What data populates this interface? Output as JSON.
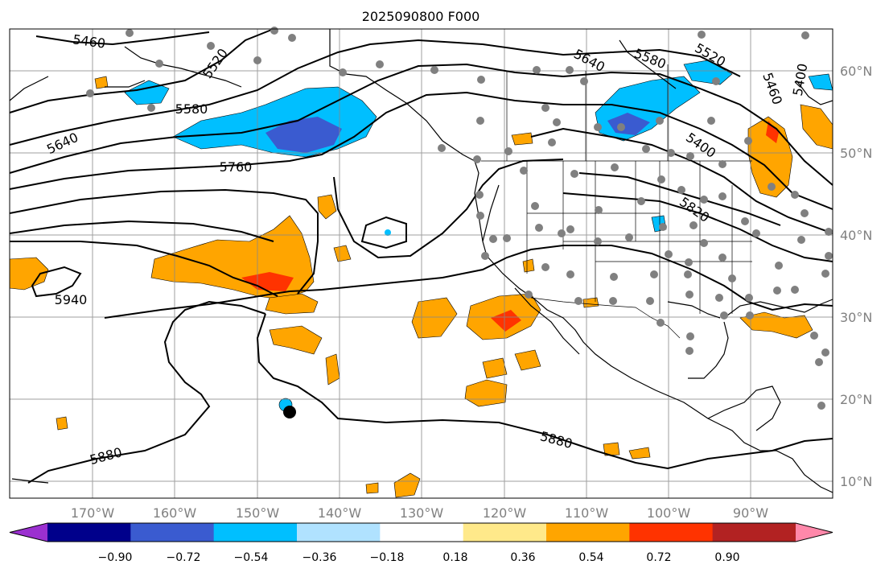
{
  "title": "2025090800 F000",
  "map": {
    "lon_labels": [
      "170°W",
      "160°W",
      "150°W",
      "140°W",
      "130°W",
      "120°W",
      "110°W",
      "100°W",
      "90°W"
    ],
    "lat_labels": [
      "10°N",
      "20°N",
      "30°N",
      "40°N",
      "50°N",
      "60°N"
    ],
    "contour_labels": [
      "5460",
      "5520",
      "5580",
      "5640",
      "5760",
      "5580",
      "5640",
      "5520",
      "5460",
      "5400",
      "5400",
      "5820",
      "5940",
      "5880",
      "5880"
    ],
    "field_description": "500 hPa geopotential height contours (gpm) over shaded field"
  },
  "colorbar": {
    "tick_labels": [
      "−0.90",
      "−0.72",
      "−0.54",
      "−0.36",
      "−0.18",
      "0.18",
      "0.36",
      "0.54",
      "0.72",
      "0.90"
    ],
    "colors": [
      "#9b30d0",
      "#00008b",
      "#3a5bd0",
      "#00bfff",
      "#b0e2ff",
      "#ffffff",
      "#ffe98a",
      "#ffa500",
      "#ff3300",
      "#b22222",
      "#ff88aa"
    ]
  }
}
